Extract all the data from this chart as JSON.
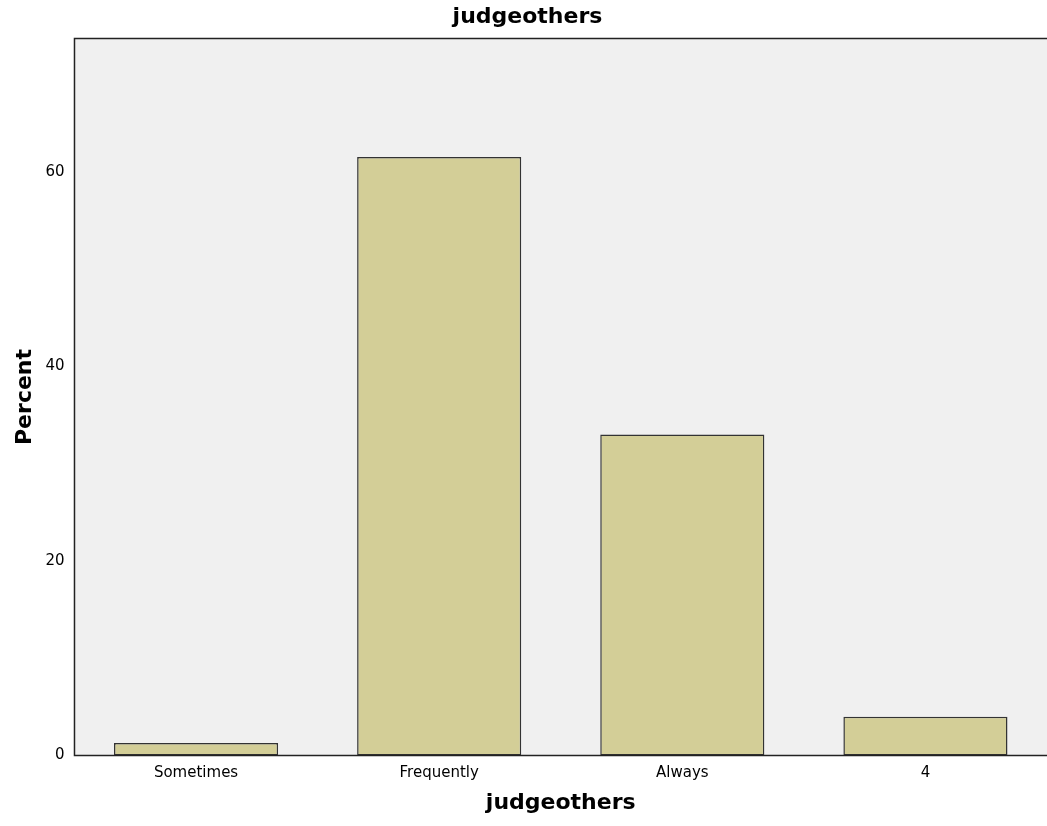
{
  "chart_data": {
    "type": "bar",
    "title": "judgeothers",
    "xlabel": "judgeothers",
    "ylabel": "Percent",
    "categories": [
      "Sometimes",
      "Frequently",
      "Always",
      "4"
    ],
    "values": [
      1.3,
      61.5,
      33.0,
      4.0
    ],
    "color": "#d3ce97",
    "ylim": [
      0,
      73.7
    ],
    "yticks": [
      0,
      20,
      40,
      60
    ],
    "grid": false,
    "legend": false
  }
}
